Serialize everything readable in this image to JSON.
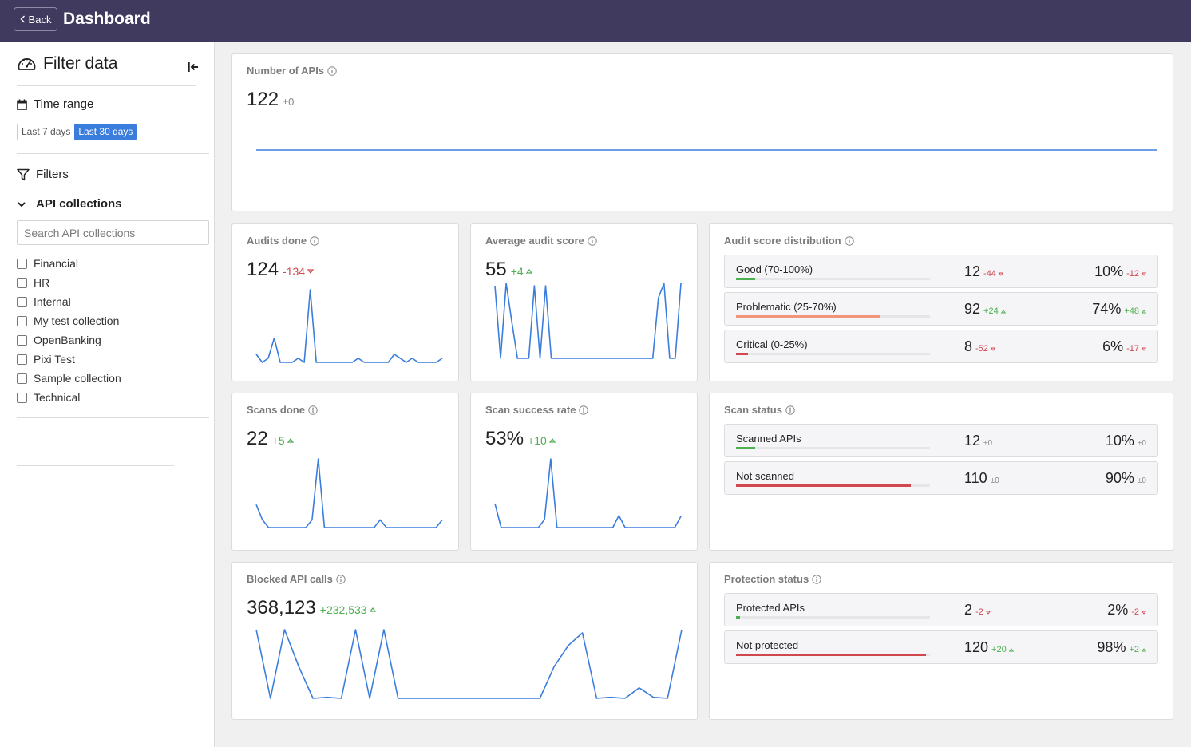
{
  "header": {
    "back_label": "Back",
    "title": "Dashboard"
  },
  "sidebar": {
    "title": "Filter data",
    "time_range": {
      "label": "Time range",
      "options": [
        "Last 7 days",
        "Last 30 days"
      ],
      "selected": "Last 30 days"
    },
    "filters_label": "Filters",
    "api_collections": {
      "label": "API collections",
      "search_placeholder": "Search API collections",
      "items": [
        "Financial",
        "HR",
        "Internal",
        "My test collection",
        "OpenBanking",
        "Pixi Test",
        "Sample collection",
        "Technical"
      ]
    }
  },
  "colors": {
    "header": "#3f3a5e",
    "line": "#3b7ddd",
    "up": "#4caf50",
    "down": "#d0474e",
    "good": "#4caf50",
    "problematic": "#f0957b",
    "critical": "#d0474e"
  },
  "cards": {
    "num_apis": {
      "title": "Number of APIs",
      "value": "122",
      "delta": "±0",
      "series": [
        122,
        122,
        122,
        122,
        122,
        122,
        122,
        122,
        122,
        122,
        122,
        122,
        122,
        122,
        122,
        122,
        122,
        122,
        122,
        122,
        122,
        122,
        122,
        122,
        122,
        122,
        122,
        122,
        122,
        122
      ]
    },
    "audits_done": {
      "title": "Audits done",
      "value": "124",
      "delta": "-134",
      "dir": "down",
      "series": [
        2,
        0,
        1,
        6,
        0,
        0,
        0,
        1,
        0,
        18,
        0,
        0,
        0,
        0,
        0,
        0,
        0,
        1,
        0,
        0,
        0,
        0,
        0,
        2,
        1,
        0,
        1,
        0,
        0,
        0,
        0,
        1
      ]
    },
    "avg_audit_score": {
      "title": "Average audit score",
      "value": "55",
      "delta": "+4",
      "dir": "up",
      "series": [
        60,
        0,
        62,
        30,
        0,
        0,
        0,
        60,
        0,
        60,
        0,
        0,
        0,
        0,
        0,
        0,
        0,
        0,
        0,
        0,
        0,
        0,
        0,
        0,
        0,
        0,
        0,
        0,
        0,
        50,
        62,
        0,
        0,
        62
      ]
    },
    "audit_dist": {
      "title": "Audit score distribution",
      "rows": [
        {
          "label": "Good (70-100%)",
          "count": "12",
          "count_delta": "-44",
          "count_dir": "down",
          "pct": "10%",
          "pct_delta": "-12",
          "pct_dir": "down",
          "fraction": 0.1,
          "color": "#4caf50"
        },
        {
          "label": "Problematic (25-70%)",
          "count": "92",
          "count_delta": "+24",
          "count_dir": "up",
          "pct": "74%",
          "pct_delta": "+48",
          "pct_dir": "up",
          "fraction": 0.74,
          "color": "#f0957b"
        },
        {
          "label": "Critical (0-25%)",
          "count": "8",
          "count_delta": "-52",
          "count_dir": "down",
          "pct": "6%",
          "pct_delta": "-17",
          "pct_dir": "down",
          "fraction": 0.06,
          "color": "#d0474e"
        }
      ]
    },
    "scans_done": {
      "title": "Scans done",
      "value": "22",
      "delta": "+5",
      "dir": "up",
      "series": [
        3,
        1,
        0,
        0,
        0,
        0,
        0,
        0,
        0,
        1,
        9,
        0,
        0,
        0,
        0,
        0,
        0,
        0,
        0,
        0,
        1,
        0,
        0,
        0,
        0,
        0,
        0,
        0,
        0,
        0,
        1
      ]
    },
    "scan_success": {
      "title": "Scan success rate",
      "value": "53%",
      "delta": "+10",
      "dir": "up",
      "series": [
        30,
        0,
        0,
        0,
        0,
        0,
        0,
        0,
        10,
        86,
        0,
        0,
        0,
        0,
        0,
        0,
        0,
        0,
        0,
        0,
        15,
        0,
        0,
        0,
        0,
        0,
        0,
        0,
        0,
        0,
        14
      ]
    },
    "scan_status": {
      "title": "Scan status",
      "rows": [
        {
          "label": "Scanned APIs",
          "count": "12",
          "count_delta": "±0",
          "count_dir": "neutral",
          "pct": "10%",
          "pct_delta": "±0",
          "pct_dir": "neutral",
          "fraction": 0.1,
          "color": "#4caf50"
        },
        {
          "label": "Not scanned",
          "count": "110",
          "count_delta": "±0",
          "count_dir": "neutral",
          "pct": "90%",
          "pct_delta": "±0",
          "pct_dir": "neutral",
          "fraction": 0.9,
          "color": "#d0474e"
        }
      ]
    },
    "blocked_calls": {
      "title": "Blocked API calls",
      "value": "368,123",
      "delta": "+232,533",
      "dir": "up",
      "series": [
        65,
        0,
        65,
        30,
        0,
        1,
        0,
        65,
        0,
        65,
        0,
        0,
        0,
        0,
        0,
        0,
        0,
        0,
        0,
        0,
        0,
        30,
        50,
        62,
        0,
        1,
        0,
        10,
        1,
        0,
        65
      ]
    },
    "protection_status": {
      "title": "Protection status",
      "rows": [
        {
          "label": "Protected APIs",
          "count": "2",
          "count_delta": "-2",
          "count_dir": "down",
          "pct": "2%",
          "pct_delta": "-2",
          "pct_dir": "down",
          "fraction": 0.02,
          "color": "#4caf50"
        },
        {
          "label": "Not protected",
          "count": "120",
          "count_delta": "+20",
          "count_dir": "up",
          "pct": "98%",
          "pct_delta": "+2",
          "pct_dir": "up",
          "fraction": 0.98,
          "color": "#d0474e"
        }
      ]
    }
  }
}
